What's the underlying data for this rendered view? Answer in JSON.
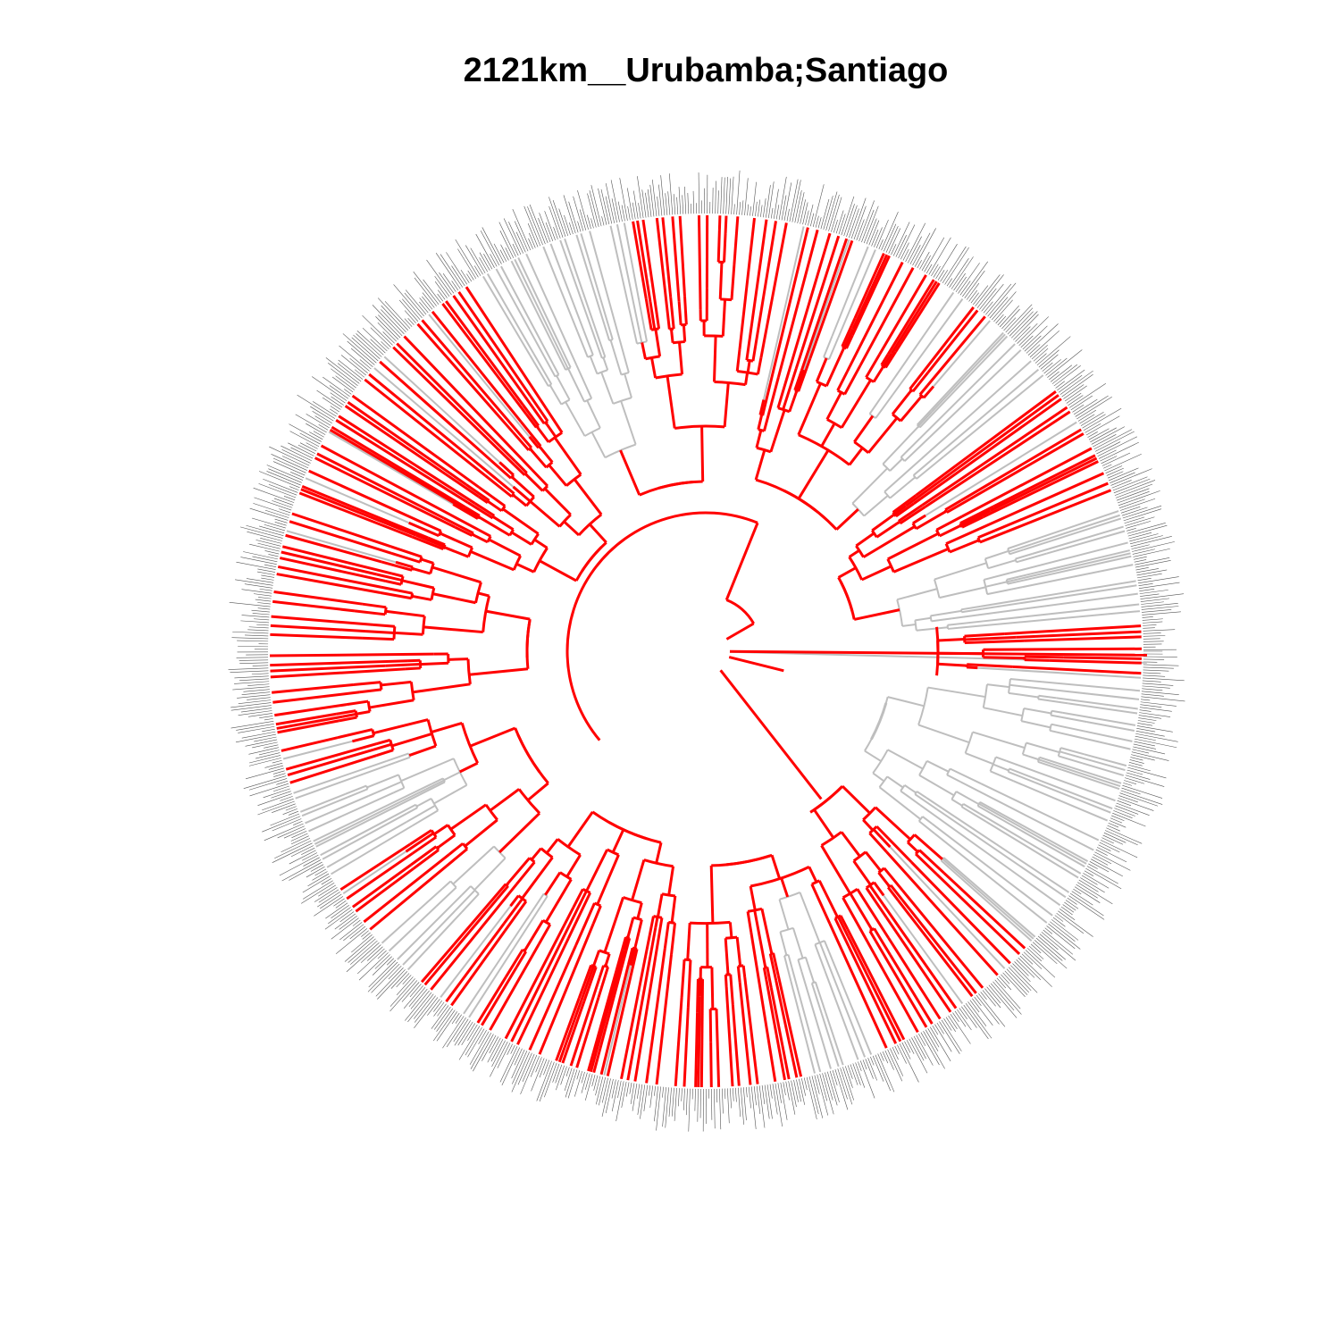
{
  "title": "2121km__Urubamba;Santiago",
  "colors": {
    "highlight": "#ff0000",
    "background_branch": "#bebebe",
    "tip_label": "#555555",
    "title": "#000000"
  },
  "diagram": {
    "type": "circular-phylogenetic-tree",
    "highlighted_lineages_color_name": "red",
    "background_lineages_color_name": "grey"
  }
}
